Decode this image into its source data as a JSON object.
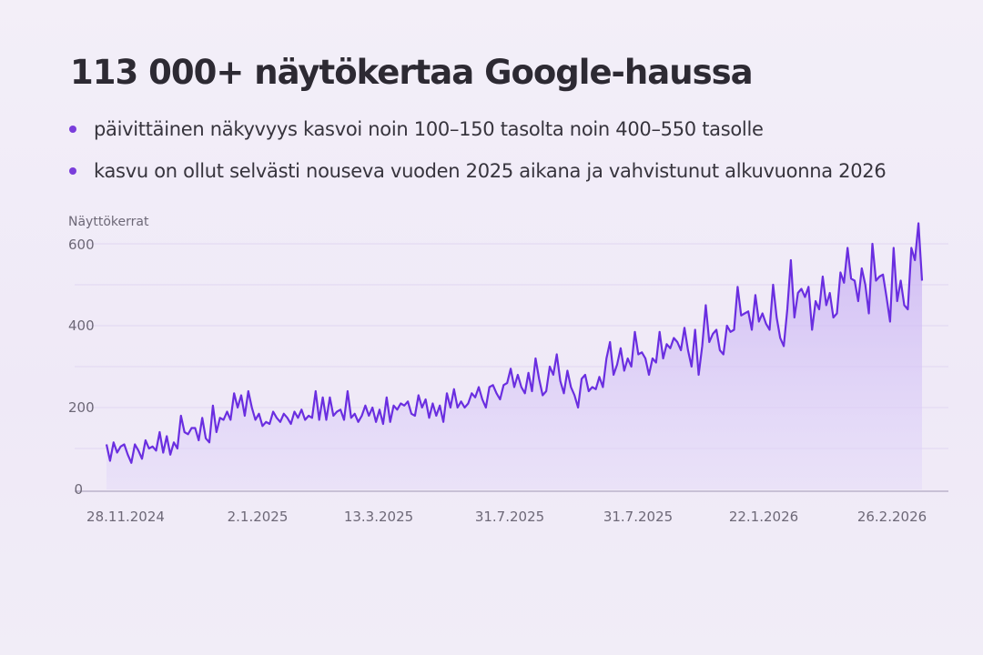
{
  "title": "113 000+ näytökertaa Google-haussa",
  "bullets": [
    "päivittäinen näkyvyys kasvoi noin 100–150 tasolta noin 400–550 tasolle",
    "kasvu on ollut selvästi nouseva vuoden 2025 aikana ja vahvistunut alkuvuonna 2026"
  ],
  "colors": {
    "line": "#6a2ee0",
    "fill": "#c9b3f3",
    "bullet": "#7a3ddb"
  },
  "chart_data": {
    "type": "area",
    "title": "",
    "ylabel": "Näyttökerrat",
    "xlabel": "",
    "ylim": [
      0,
      600
    ],
    "yticks": [
      "0",
      "200",
      "400",
      "600"
    ],
    "xticks": [
      "28.11.2024",
      "2.1.2025",
      "13.3.2025",
      "31.7.2025",
      "31.7.2025",
      "22.1.2026",
      "26.2.2026"
    ],
    "grid": true,
    "values": [
      110,
      70,
      115,
      90,
      105,
      110,
      85,
      65,
      110,
      95,
      75,
      120,
      100,
      105,
      95,
      140,
      90,
      130,
      85,
      115,
      100,
      180,
      140,
      135,
      150,
      150,
      120,
      175,
      125,
      115,
      205,
      140,
      175,
      170,
      190,
      170,
      235,
      200,
      230,
      180,
      240,
      200,
      170,
      185,
      155,
      165,
      160,
      190,
      175,
      165,
      185,
      175,
      160,
      190,
      175,
      195,
      170,
      180,
      175,
      240,
      170,
      225,
      170,
      225,
      180,
      190,
      195,
      170,
      240,
      175,
      185,
      165,
      180,
      205,
      180,
      200,
      165,
      195,
      160,
      225,
      165,
      205,
      195,
      210,
      205,
      215,
      185,
      180,
      230,
      200,
      220,
      175,
      210,
      180,
      205,
      165,
      235,
      200,
      245,
      200,
      215,
      200,
      210,
      235,
      225,
      250,
      220,
      200,
      250,
      255,
      235,
      220,
      255,
      260,
      295,
      250,
      280,
      250,
      235,
      285,
      240,
      320,
      270,
      230,
      240,
      300,
      280,
      330,
      265,
      235,
      290,
      250,
      230,
      200,
      270,
      280,
      240,
      250,
      245,
      275,
      250,
      320,
      360,
      280,
      305,
      345,
      290,
      320,
      300,
      385,
      330,
      335,
      320,
      280,
      320,
      310,
      385,
      320,
      355,
      345,
      370,
      360,
      340,
      395,
      340,
      300,
      390,
      280,
      350,
      450,
      360,
      380,
      390,
      340,
      330,
      400,
      385,
      390,
      495,
      425,
      430,
      435,
      390,
      475,
      410,
      430,
      405,
      390,
      500,
      420,
      370,
      350,
      440,
      560,
      420,
      480,
      490,
      470,
      495,
      390,
      460,
      440,
      520,
      450,
      480,
      420,
      430,
      530,
      505,
      590,
      515,
      510,
      460,
      540,
      500,
      430,
      600,
      510,
      520,
      525,
      470,
      410,
      590,
      460,
      510,
      450,
      440,
      590,
      560,
      650,
      510
    ]
  }
}
